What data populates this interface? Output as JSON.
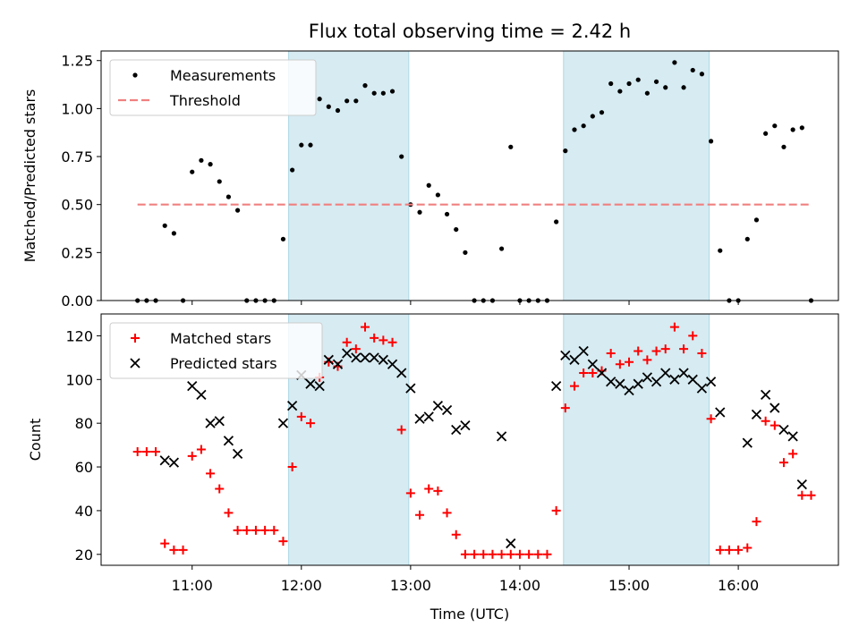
{
  "chart_data": [
    {
      "type": "scatter",
      "title": "Flux total observing time = 2.42 h",
      "xlabel": "",
      "ylabel": "Matched/Predicted stars",
      "xlim": [
        "10:10",
        "16:55"
      ],
      "ylim": [
        0,
        1.3
      ],
      "yticks": [
        "0.00",
        "0.25",
        "0.50",
        "0.75",
        "1.00",
        "1.25"
      ],
      "xticks": [
        "11:00",
        "12:00",
        "13:00",
        "14:00",
        "15:00",
        "16:00"
      ],
      "shaded_spans": [
        [
          "11:53",
          "12:59"
        ],
        [
          "14:24",
          "15:44"
        ]
      ],
      "legend": {
        "position": "upper-left",
        "entries": [
          "Measurements",
          "Threshold"
        ]
      },
      "series": [
        {
          "name": "Measurements",
          "marker": "dot",
          "color": "#000000",
          "points": [
            [
              "10:30",
              0
            ],
            [
              "10:35",
              0
            ],
            [
              "10:40",
              0
            ],
            [
              "10:45",
              0.39
            ],
            [
              "10:50",
              0.35
            ],
            [
              "10:55",
              0
            ],
            [
              "11:00",
              0.67
            ],
            [
              "11:05",
              0.73
            ],
            [
              "11:10",
              0.71
            ],
            [
              "11:15",
              0.62
            ],
            [
              "11:20",
              0.54
            ],
            [
              "11:25",
              0.47
            ],
            [
              "11:30",
              0
            ],
            [
              "11:35",
              0
            ],
            [
              "11:40",
              0
            ],
            [
              "11:45",
              0
            ],
            [
              "11:50",
              0.32
            ],
            [
              "11:55",
              0.68
            ],
            [
              "12:00",
              0.81
            ],
            [
              "12:05",
              0.81
            ],
            [
              "12:10",
              1.05
            ],
            [
              "12:15",
              1.01
            ],
            [
              "12:20",
              0.99
            ],
            [
              "12:25",
              1.04
            ],
            [
              "12:30",
              1.04
            ],
            [
              "12:35",
              1.12
            ],
            [
              "12:40",
              1.08
            ],
            [
              "12:45",
              1.08
            ],
            [
              "12:50",
              1.09
            ],
            [
              "12:55",
              0.75
            ],
            [
              "13:00",
              0.5
            ],
            [
              "13:05",
              0.46
            ],
            [
              "13:10",
              0.6
            ],
            [
              "13:15",
              0.55
            ],
            [
              "13:20",
              0.45
            ],
            [
              "13:25",
              0.37
            ],
            [
              "13:30",
              0.25
            ],
            [
              "13:35",
              0
            ],
            [
              "13:40",
              0
            ],
            [
              "13:45",
              0
            ],
            [
              "13:50",
              0.27
            ],
            [
              "13:55",
              0.8
            ],
            [
              "14:00",
              0
            ],
            [
              "14:05",
              0
            ],
            [
              "14:10",
              0
            ],
            [
              "14:15",
              0
            ],
            [
              "14:20",
              0.41
            ],
            [
              "14:25",
              0.78
            ],
            [
              "14:30",
              0.89
            ],
            [
              "14:35",
              0.91
            ],
            [
              "14:40",
              0.96
            ],
            [
              "14:45",
              0.98
            ],
            [
              "14:50",
              1.13
            ],
            [
              "14:55",
              1.09
            ],
            [
              "15:00",
              1.13
            ],
            [
              "15:05",
              1.15
            ],
            [
              "15:10",
              1.08
            ],
            [
              "15:15",
              1.14
            ],
            [
              "15:20",
              1.11
            ],
            [
              "15:25",
              1.24
            ],
            [
              "15:30",
              1.11
            ],
            [
              "15:35",
              1.2
            ],
            [
              "15:40",
              1.18
            ],
            [
              "15:45",
              0.83
            ],
            [
              "15:50",
              0.26
            ],
            [
              "15:55",
              0
            ],
            [
              "16:00",
              0
            ],
            [
              "16:05",
              0.32
            ],
            [
              "16:10",
              0.42
            ],
            [
              "16:15",
              0.87
            ],
            [
              "16:20",
              0.91
            ],
            [
              "16:25",
              0.8
            ],
            [
              "16:30",
              0.89
            ],
            [
              "16:35",
              0.9
            ],
            [
              "16:40",
              0
            ]
          ]
        },
        {
          "name": "Threshold",
          "marker": "dashed-line",
          "color": "#f08080",
          "points": [
            [
              "10:30",
              0.5
            ],
            [
              "16:40",
              0.5
            ]
          ]
        }
      ]
    },
    {
      "type": "scatter",
      "title": "",
      "xlabel": "Time (UTC)",
      "ylabel": "Count",
      "xlim": [
        "10:10",
        "16:55"
      ],
      "ylim": [
        15,
        130
      ],
      "yticks": [
        "20",
        "40",
        "60",
        "80",
        "100",
        "120"
      ],
      "xticks": [
        "11:00",
        "12:00",
        "13:00",
        "14:00",
        "15:00",
        "16:00"
      ],
      "shaded_spans": [
        [
          "11:53",
          "12:59"
        ],
        [
          "14:24",
          "15:44"
        ]
      ],
      "legend": {
        "position": "upper-left",
        "entries": [
          "Matched stars",
          "Predicted stars"
        ]
      },
      "series": [
        {
          "name": "Matched stars",
          "marker": "plus",
          "color": "#ff0000",
          "points": [
            [
              "10:30",
              67
            ],
            [
              "10:35",
              67
            ],
            [
              "10:40",
              67
            ],
            [
              "10:45",
              25
            ],
            [
              "10:50",
              22
            ],
            [
              "10:55",
              22
            ],
            [
              "11:00",
              65
            ],
            [
              "11:05",
              68
            ],
            [
              "11:10",
              57
            ],
            [
              "11:15",
              50
            ],
            [
              "11:20",
              39
            ],
            [
              "11:25",
              31
            ],
            [
              "11:30",
              31
            ],
            [
              "11:35",
              31
            ],
            [
              "11:40",
              31
            ],
            [
              "11:45",
              31
            ],
            [
              "11:50",
              26
            ],
            [
              "11:55",
              60
            ],
            [
              "12:00",
              83
            ],
            [
              "12:05",
              80
            ],
            [
              "12:10",
              101
            ],
            [
              "12:15",
              108
            ],
            [
              "12:20",
              106
            ],
            [
              "12:25",
              117
            ],
            [
              "12:30",
              114
            ],
            [
              "12:35",
              124
            ],
            [
              "12:40",
              119
            ],
            [
              "12:45",
              118
            ],
            [
              "12:50",
              117
            ],
            [
              "12:55",
              77
            ],
            [
              "13:00",
              48
            ],
            [
              "13:05",
              38
            ],
            [
              "13:10",
              50
            ],
            [
              "13:15",
              49
            ],
            [
              "13:20",
              39
            ],
            [
              "13:25",
              29
            ],
            [
              "13:30",
              20
            ],
            [
              "13:35",
              20
            ],
            [
              "13:40",
              20
            ],
            [
              "13:45",
              20
            ],
            [
              "13:50",
              20
            ],
            [
              "13:55",
              20
            ],
            [
              "14:00",
              20
            ],
            [
              "14:05",
              20
            ],
            [
              "14:10",
              20
            ],
            [
              "14:15",
              20
            ],
            [
              "14:20",
              40
            ],
            [
              "14:25",
              87
            ],
            [
              "14:30",
              97
            ],
            [
              "14:35",
              103
            ],
            [
              "14:40",
              103
            ],
            [
              "14:45",
              104
            ],
            [
              "14:50",
              112
            ],
            [
              "14:55",
              107
            ],
            [
              "15:00",
              108
            ],
            [
              "15:05",
              113
            ],
            [
              "15:10",
              109
            ],
            [
              "15:15",
              113
            ],
            [
              "15:20",
              114
            ],
            [
              "15:25",
              124
            ],
            [
              "15:30",
              114
            ],
            [
              "15:35",
              120
            ],
            [
              "15:40",
              112
            ],
            [
              "15:45",
              82
            ],
            [
              "15:50",
              22
            ],
            [
              "15:55",
              22
            ],
            [
              "16:00",
              22
            ],
            [
              "16:05",
              23
            ],
            [
              "16:10",
              35
            ],
            [
              "16:15",
              81
            ],
            [
              "16:20",
              79
            ],
            [
              "16:25",
              62
            ],
            [
              "16:30",
              66
            ],
            [
              "16:35",
              47
            ],
            [
              "16:40",
              47
            ]
          ]
        },
        {
          "name": "Predicted stars",
          "marker": "x",
          "color": "#000000",
          "points": [
            [
              "10:45",
              63
            ],
            [
              "10:50",
              62
            ],
            [
              "11:00",
              97
            ],
            [
              "11:05",
              93
            ],
            [
              "11:10",
              80
            ],
            [
              "11:15",
              81
            ],
            [
              "11:20",
              72
            ],
            [
              "11:25",
              66
            ],
            [
              "11:50",
              80
            ],
            [
              "11:55",
              88
            ],
            [
              "12:00",
              102
            ],
            [
              "12:05",
              98
            ],
            [
              "12:10",
              97
            ],
            [
              "12:15",
              109
            ],
            [
              "12:20",
              107
            ],
            [
              "12:25",
              112
            ],
            [
              "12:30",
              110
            ],
            [
              "12:35",
              110
            ],
            [
              "12:40",
              110
            ],
            [
              "12:45",
              109
            ],
            [
              "12:50",
              107
            ],
            [
              "12:55",
              103
            ],
            [
              "13:00",
              96
            ],
            [
              "13:05",
              82
            ],
            [
              "13:10",
              83
            ],
            [
              "13:15",
              88
            ],
            [
              "13:20",
              86
            ],
            [
              "13:25",
              77
            ],
            [
              "13:30",
              79
            ],
            [
              "13:50",
              74
            ],
            [
              "13:55",
              25
            ],
            [
              "14:20",
              97
            ],
            [
              "14:25",
              111
            ],
            [
              "14:30",
              109
            ],
            [
              "14:35",
              113
            ],
            [
              "14:40",
              107
            ],
            [
              "14:45",
              103
            ],
            [
              "14:50",
              99
            ],
            [
              "14:55",
              98
            ],
            [
              "15:00",
              95
            ],
            [
              "15:05",
              98
            ],
            [
              "15:10",
              101
            ],
            [
              "15:15",
              99
            ],
            [
              "15:20",
              103
            ],
            [
              "15:25",
              100
            ],
            [
              "15:30",
              103
            ],
            [
              "15:35",
              100
            ],
            [
              "15:40",
              96
            ],
            [
              "15:45",
              99
            ],
            [
              "15:50",
              85
            ],
            [
              "16:05",
              71
            ],
            [
              "16:10",
              84
            ],
            [
              "16:15",
              93
            ],
            [
              "16:20",
              87
            ],
            [
              "16:25",
              77
            ],
            [
              "16:30",
              74
            ],
            [
              "16:35",
              52
            ]
          ]
        }
      ]
    }
  ]
}
